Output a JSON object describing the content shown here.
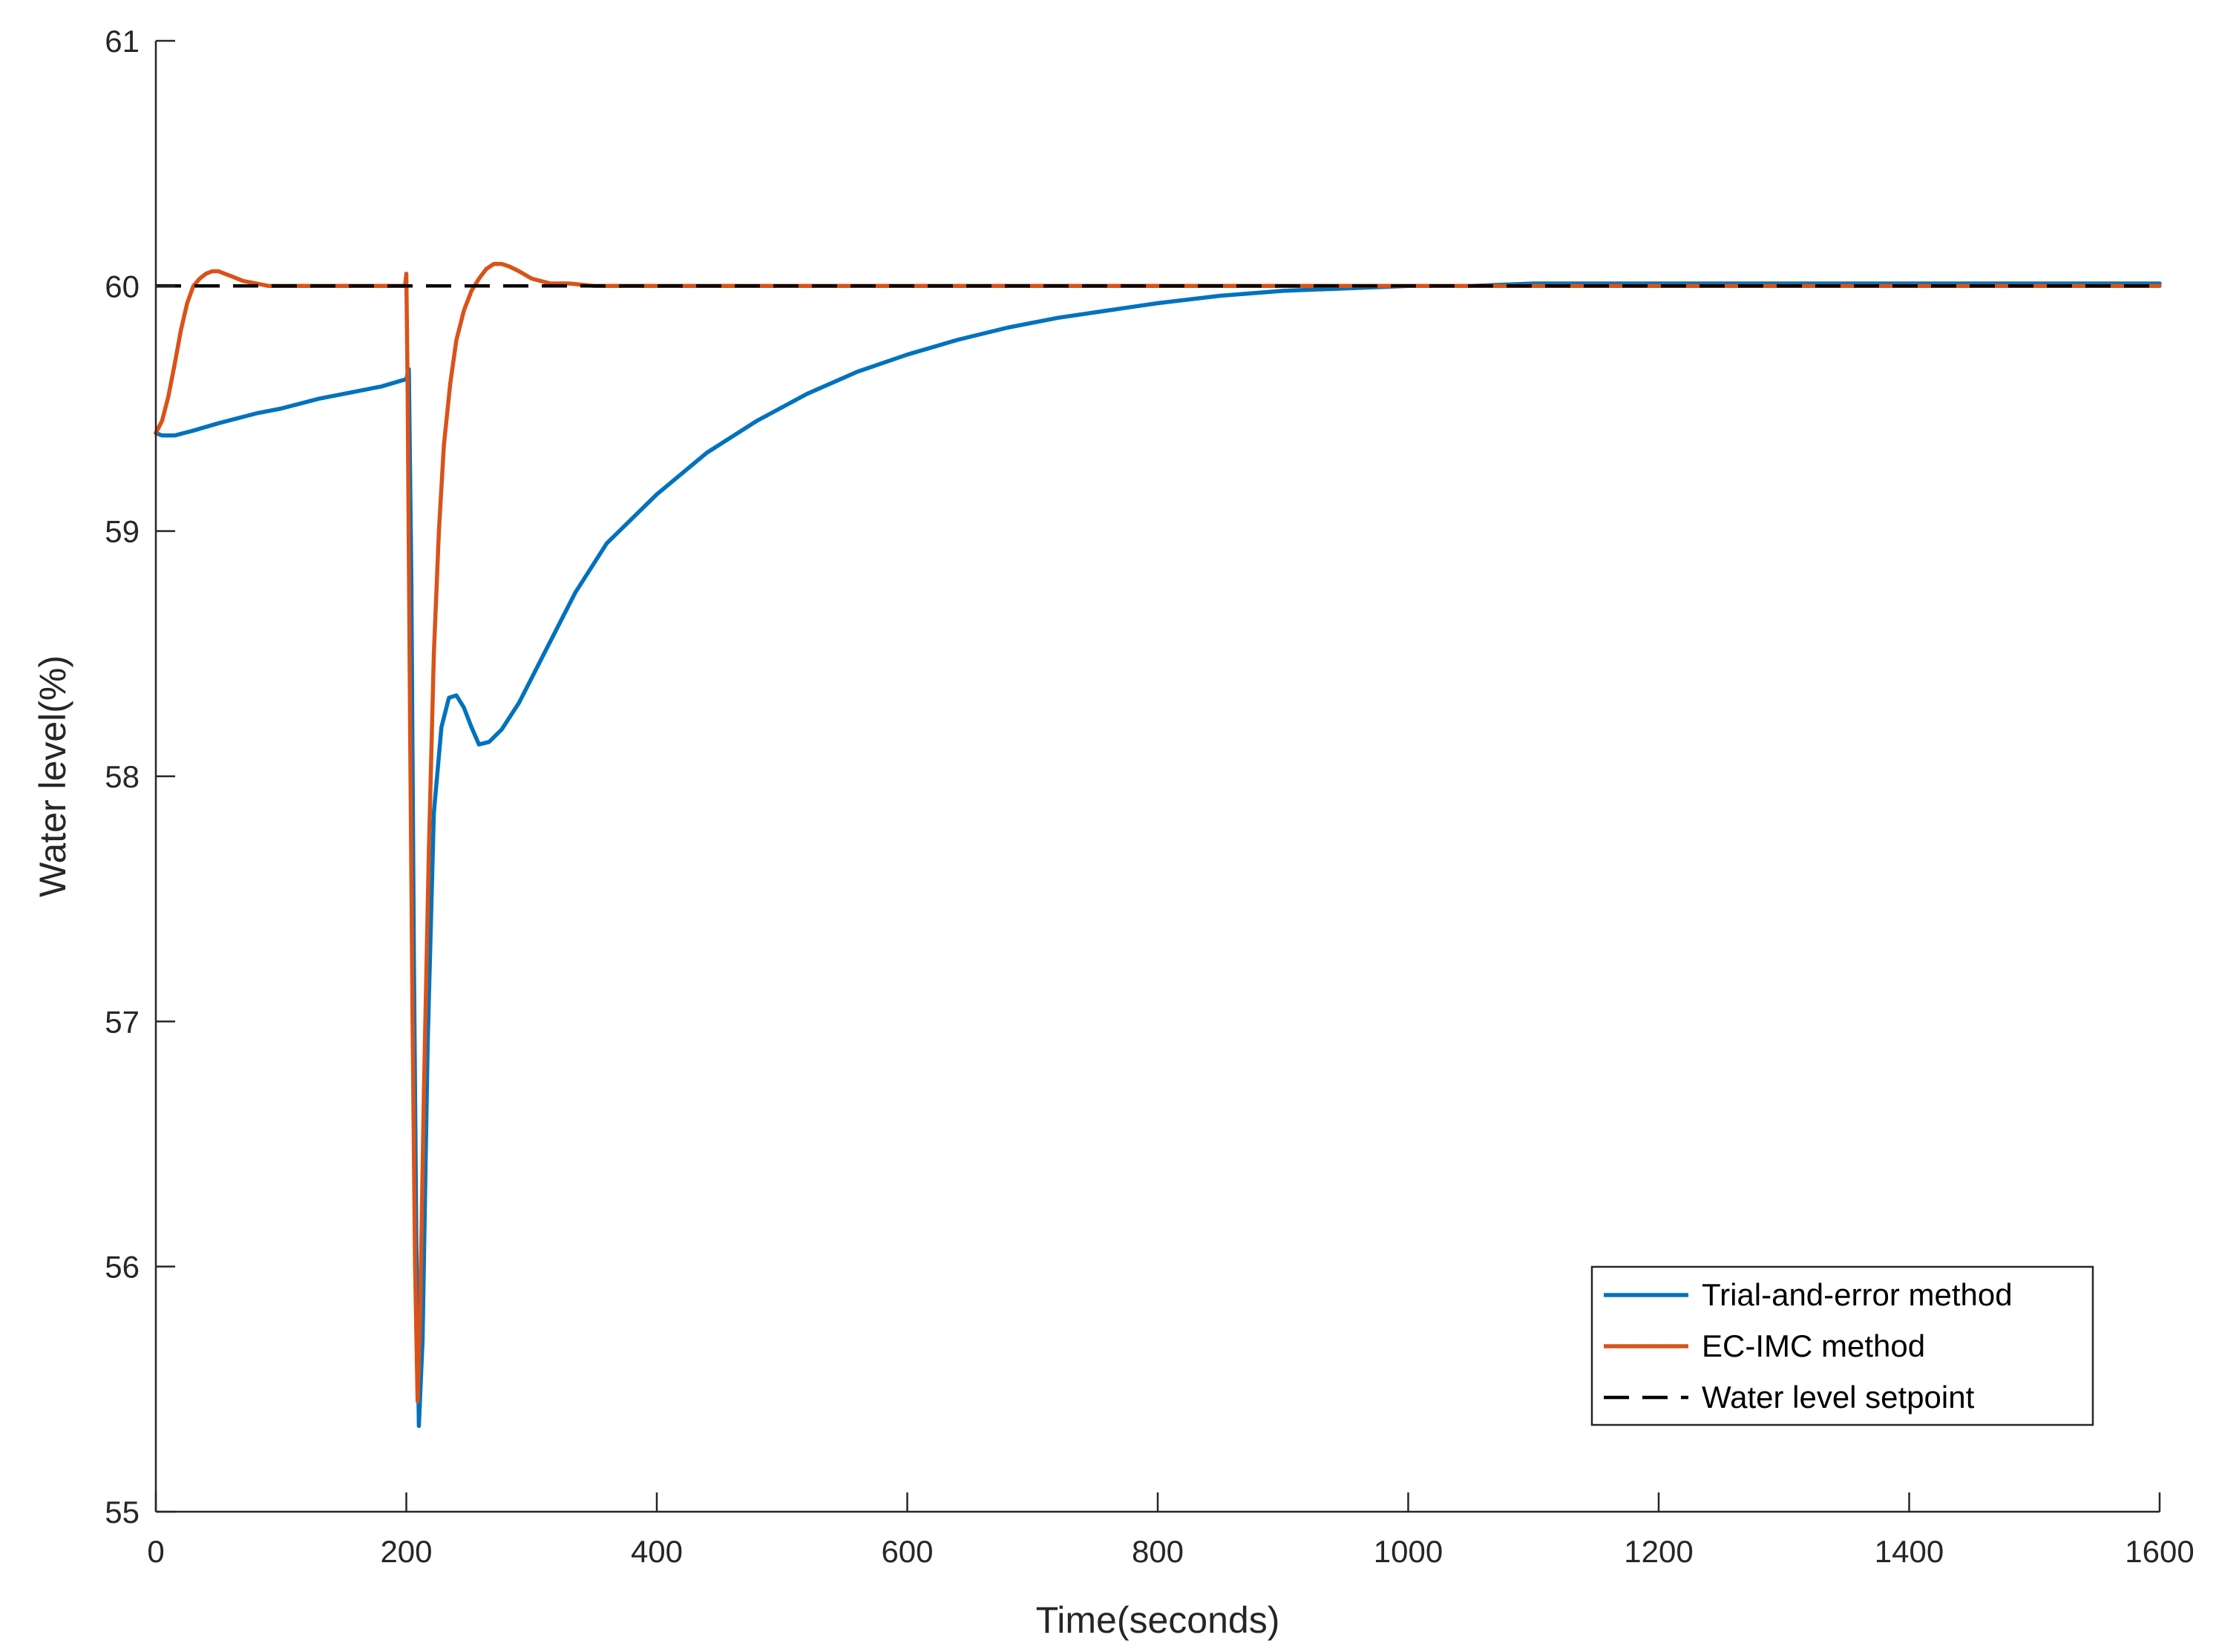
{
  "chart_data": {
    "type": "line",
    "xlabel": "Time(seconds)",
    "ylabel": "Water level(%)",
    "xlim": [
      0,
      1600
    ],
    "ylim": [
      55,
      61
    ],
    "xticks": [
      0,
      200,
      400,
      600,
      800,
      1000,
      1200,
      1400,
      1600
    ],
    "yticks": [
      55,
      56,
      57,
      58,
      59,
      60,
      61
    ],
    "grid": false,
    "legend_position": "bottom-right",
    "series": [
      {
        "name": "Trial-and-error method",
        "color": "#0072BD",
        "style": "solid",
        "x": [
          0,
          5,
          15,
          30,
          50,
          80,
          100,
          130,
          160,
          180,
          200,
          202,
          204,
          206,
          208,
          210,
          213,
          217,
          222,
          228,
          234,
          240,
          246,
          252,
          258,
          266,
          276,
          290,
          310,
          335,
          360,
          400,
          440,
          480,
          520,
          560,
          600,
          640,
          680,
          720,
          760,
          800,
          850,
          900,
          950,
          1000,
          1050,
          1100,
          1150,
          1200,
          1300,
          1400,
          1500,
          1600
        ],
        "y": [
          59.4,
          59.39,
          59.39,
          59.41,
          59.44,
          59.48,
          59.5,
          59.54,
          59.57,
          59.59,
          59.62,
          59.66,
          58.8,
          57.3,
          56.1,
          55.35,
          55.7,
          56.9,
          57.85,
          58.2,
          58.32,
          58.33,
          58.28,
          58.2,
          58.13,
          58.14,
          58.19,
          58.3,
          58.5,
          58.75,
          58.95,
          59.15,
          59.32,
          59.45,
          59.56,
          59.65,
          59.72,
          59.78,
          59.83,
          59.87,
          59.9,
          59.93,
          59.96,
          59.98,
          59.99,
          60.0,
          60.0,
          60.01,
          60.01,
          60.01,
          60.01,
          60.01,
          60.01,
          60.01
        ]
      },
      {
        "name": "EC-IMC method",
        "color": "#D95319",
        "style": "solid",
        "x": [
          0,
          5,
          10,
          15,
          20,
          25,
          30,
          35,
          40,
          45,
          50,
          55,
          60,
          65,
          70,
          80,
          90,
          100,
          120,
          150,
          180,
          199,
          200,
          201,
          203,
          205,
          207,
          209,
          211,
          214,
          218,
          222,
          226,
          230,
          235,
          240,
          246,
          252,
          258,
          264,
          270,
          276,
          282,
          290,
          300,
          315,
          330,
          350,
          400,
          500,
          600,
          800,
          1000,
          1200,
          1400,
          1600
        ],
        "y": [
          59.4,
          59.45,
          59.55,
          59.68,
          59.82,
          59.93,
          60.0,
          60.03,
          60.05,
          60.06,
          60.06,
          60.05,
          60.04,
          60.03,
          60.02,
          60.01,
          60.0,
          60.0,
          60.0,
          60.0,
          60.0,
          60.0,
          60.05,
          59.6,
          58.2,
          57.0,
          56.0,
          55.45,
          55.8,
          56.7,
          57.7,
          58.5,
          59.0,
          59.35,
          59.6,
          59.78,
          59.9,
          59.98,
          60.03,
          60.07,
          60.09,
          60.09,
          60.08,
          60.06,
          60.03,
          60.01,
          60.01,
          60.0,
          60.0,
          60.0,
          60.0,
          60.0,
          60.0,
          60.0,
          60.0,
          60.0
        ]
      },
      {
        "name": "Water level setpoint",
        "color": "#000000",
        "style": "dashed",
        "x": [
          0,
          1600
        ],
        "y": [
          60,
          60
        ]
      }
    ]
  }
}
